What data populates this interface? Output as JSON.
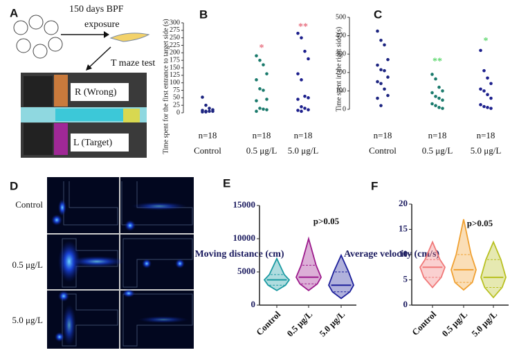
{
  "panel_a": {
    "label": "A",
    "title_lines": [
      "150 days BPF",
      "exposure"
    ],
    "test": "T maze test",
    "right_arm": "R (Wrong)",
    "left_arm": "L (Target)"
  },
  "panel_d": {
    "label": "D",
    "rows": [
      "Control",
      "0.5 μg/L",
      "5.0 μg/L"
    ]
  },
  "chart_data": [
    {
      "type": "strip",
      "label": "B",
      "y_label": "Time spent for the first entrance to target side (s)",
      "categories": [
        "Control",
        "0.5 μg/L",
        "5.0 μg/L"
      ],
      "n_labels": [
        "n=18",
        "n=18",
        "n=18"
      ],
      "colors": [
        "#1c2480",
        "#1a7a6c",
        "#1c1f8c"
      ],
      "values": [
        [
          52,
          25,
          15,
          10,
          8,
          5,
          5,
          5,
          3,
          3
        ],
        [
          190,
          175,
          160,
          130,
          110,
          80,
          75,
          45,
          40,
          15,
          12,
          10,
          5
        ],
        [
          265,
          250,
          205,
          180,
          130,
          110,
          55,
          50,
          45,
          20,
          15,
          10,
          8,
          5
        ]
      ],
      "annotations": [
        {
          "category": "0.5 μg/L",
          "text": "*",
          "y": 222,
          "color": "#e87080"
        },
        {
          "category": "5.0 μg/L",
          "text": "**",
          "y": 292,
          "color": "#e87080"
        }
      ],
      "ylim": [
        0,
        300
      ],
      "yticks": [
        0,
        25,
        50,
        75,
        100,
        125,
        150,
        175,
        200,
        225,
        250,
        275,
        300
      ]
    },
    {
      "type": "strip",
      "label": "C",
      "y_label": "Time spent in the right side (s)",
      "categories": [
        "Control",
        "0.5 μg/L",
        "5.0 μg/L"
      ],
      "n_labels": [
        "n=18",
        "n=18",
        "n=18"
      ],
      "colors": [
        "#1c2480",
        "#1a7a6c",
        "#1c1f8c"
      ],
      "values": [
        [
          425,
          375,
          350,
          270,
          240,
          215,
          210,
          175,
          150,
          140,
          110,
          75,
          60,
          20
        ],
        [
          190,
          165,
          120,
          100,
          90,
          70,
          60,
          50,
          30,
          20,
          10,
          5
        ],
        [
          320,
          210,
          170,
          140,
          110,
          100,
          80,
          60,
          25,
          15,
          10,
          5
        ]
      ],
      "annotations": [
        {
          "category": "0.5 μg/L",
          "text": "**",
          "y": 270,
          "color": "#60d870"
        },
        {
          "category": "5.0 μg/L",
          "text": "*",
          "y": 380,
          "color": "#60d870"
        }
      ],
      "ylim": [
        0,
        500
      ],
      "yticks": [
        0,
        100,
        200,
        300,
        400,
        500
      ]
    },
    {
      "type": "violin",
      "label": "E",
      "y_label": "Moving distance (cm)",
      "categories": [
        "Control",
        "0.5 μg/L",
        "5.0 μg/L"
      ],
      "colors": [
        "#1a9aa2",
        "#9c1a8c",
        "#1c1f9a"
      ],
      "stats": [
        {
          "min": 2200,
          "q1": 3000,
          "median": 3800,
          "q3": 4600,
          "max": 7000
        },
        {
          "min": 2200,
          "q1": 3200,
          "median": 4200,
          "q3": 6000,
          "max": 10000
        },
        {
          "min": 1000,
          "q1": 2000,
          "median": 3000,
          "q3": 5000,
          "max": 7500
        }
      ],
      "annotation": "p>0.05",
      "annotation_y": 12500,
      "ylim": [
        0,
        15000
      ],
      "yticks": [
        0,
        5000,
        10000,
        15000
      ]
    },
    {
      "type": "violin",
      "label": "F",
      "y_label": "Average velocity (cm/s)",
      "categories": [
        "Control",
        "0.5 μg/L",
        "5.0 μg/L"
      ],
      "colors": [
        "#f07878",
        "#f0a030",
        "#b8c020"
      ],
      "stats": [
        {
          "min": 3.5,
          "q1": 5.5,
          "median": 7.5,
          "q3": 9,
          "max": 12.5
        },
        {
          "min": 3,
          "q1": 4.5,
          "median": 7,
          "q3": 10,
          "max": 17
        },
        {
          "min": 1.5,
          "q1": 3.5,
          "median": 5.5,
          "q3": 9,
          "max": 12.5
        }
      ],
      "annotation": "p>0.05",
      "annotation_y": 16,
      "ylim": [
        0,
        20
      ],
      "yticks": [
        0,
        5,
        10,
        15,
        20
      ]
    }
  ]
}
